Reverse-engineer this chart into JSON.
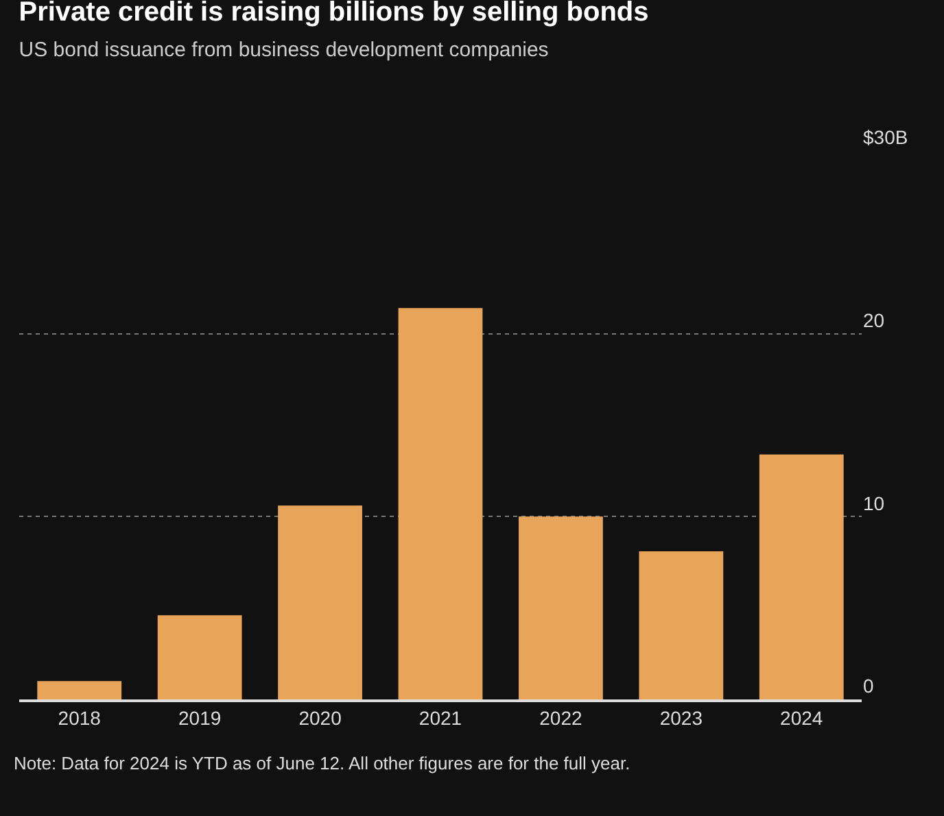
{
  "chart_data": {
    "type": "bar",
    "title": "Private credit is raising billions by selling bonds",
    "subtitle": "US bond issuance from business development companies",
    "categories": [
      "2018",
      "2019",
      "2020",
      "2021",
      "2022",
      "2023",
      "2024"
    ],
    "values": [
      1.0,
      4.6,
      10.6,
      21.4,
      10.0,
      8.1,
      13.4
    ],
    "color": "#e8a55a",
    "ylim": [
      0,
      30
    ],
    "yticks": [
      0,
      10,
      20,
      {
        "value": 30,
        "label": "$30B"
      }
    ],
    "grid": "y",
    "annotations": [
      "Note: Data for 2024 is YTD as of June 12. All other figures are for the full year."
    ]
  }
}
